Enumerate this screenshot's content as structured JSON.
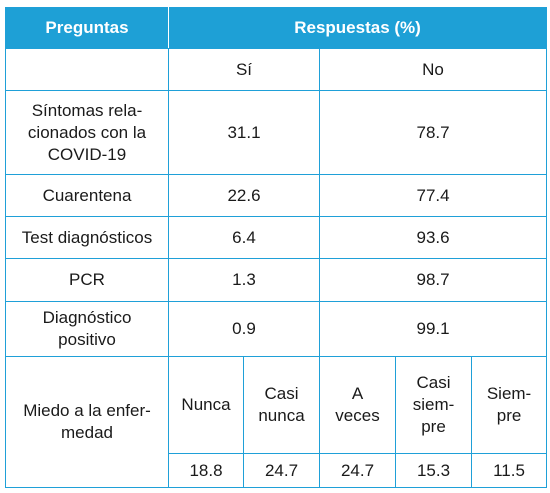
{
  "header": {
    "questions": "Preguntas",
    "answers": "Respuestas (%)"
  },
  "subheader": {
    "yes": "Sí",
    "no": "No"
  },
  "rows": [
    {
      "label": "Síntomas rela-\ncionados con la\nCOVID-19",
      "yes": "31.1",
      "no": "78.7"
    },
    {
      "label": "Cuarentena",
      "yes": "22.6",
      "no": "77.4"
    },
    {
      "label": "Test diagnósticos",
      "yes": "6.4",
      "no": "93.6"
    },
    {
      "label": "PCR",
      "yes": "1.3",
      "no": "98.7"
    },
    {
      "label": "Diagnóstico\npositivo",
      "yes": "0.9",
      "no": "99.1"
    }
  ],
  "fear": {
    "label": "Miedo a la enfer-\nmedad",
    "options": [
      "Nunca",
      "Casi\nnunca",
      "A\nveces",
      "Casi\nsiem-\npre",
      "Siem-\npre"
    ],
    "values": [
      "18.8",
      "24.7",
      "24.7",
      "15.3",
      "11.5"
    ]
  },
  "colors": {
    "header_bg": "#1ea0d6",
    "border": "#1fa0d8",
    "header_text": "#ffffff"
  }
}
